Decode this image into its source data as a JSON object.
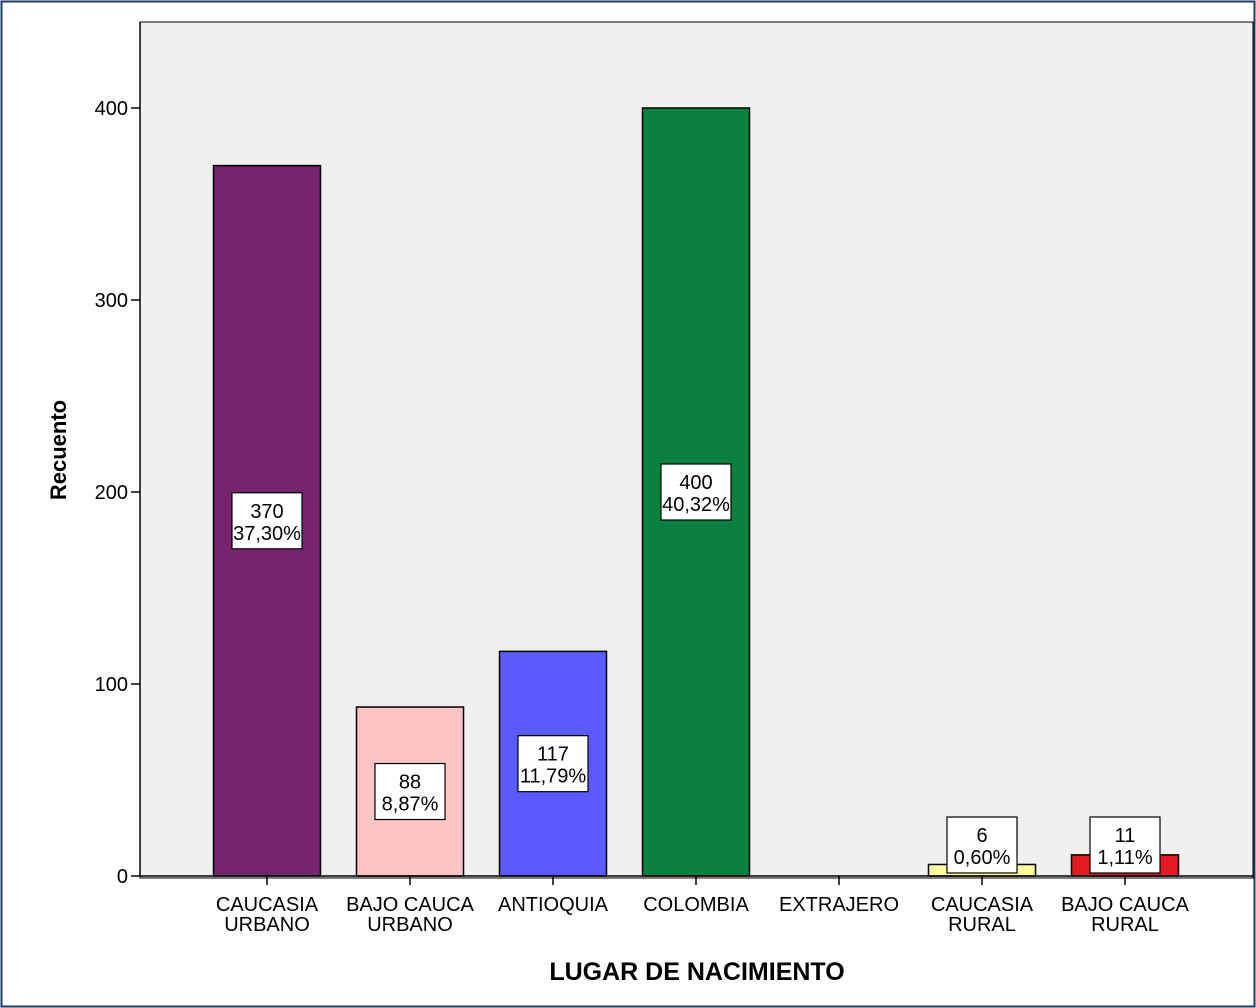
{
  "chart_data": {
    "type": "bar",
    "title": "",
    "xlabel": "LUGAR DE NACIMIENTO",
    "ylabel": "Recuento",
    "ylim": [
      0,
      440
    ],
    "yticks": [
      0,
      100,
      200,
      300,
      400
    ],
    "grid": false,
    "categories": [
      [
        "CAUCASIA",
        "URBANO"
      ],
      [
        "BAJO CAUCA",
        "URBANO"
      ],
      [
        "ANTIOQUIA"
      ],
      [
        "COLOMBIA"
      ],
      [
        "EXTRAJERO"
      ],
      [
        "CAUCASIA",
        "RURAL"
      ],
      [
        "BAJO CAUCA",
        "RURAL"
      ]
    ],
    "values": [
      370,
      88,
      117,
      400,
      0,
      6,
      11
    ],
    "percent_labels": [
      "37,30%",
      "8,87%",
      "11,79%",
      "40,32%",
      "",
      "0,60%",
      "1,11%"
    ],
    "count_labels": [
      "370",
      "88",
      "117",
      "400",
      "",
      "6",
      "11"
    ],
    "colors": [
      "#76246e",
      "#ffc4c4",
      "#5a5aff",
      "#0b8040",
      "#ffffff",
      "#fbfb99",
      "#e31b23"
    ],
    "plot_background": "#f0f0f0",
    "frame_color": "#1f3a6e"
  }
}
